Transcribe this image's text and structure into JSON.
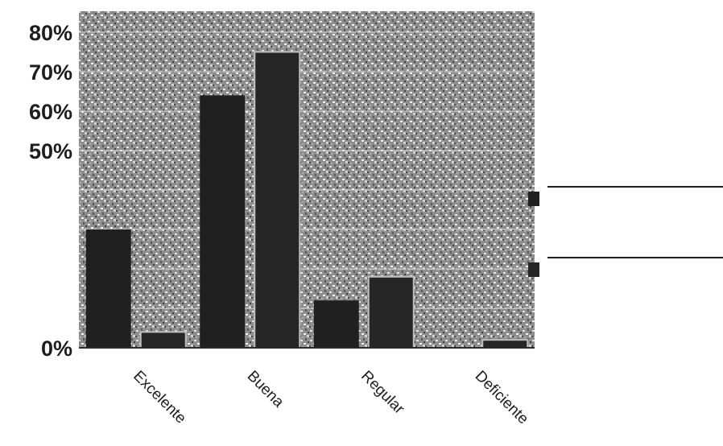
{
  "chart_data": {
    "type": "bar",
    "categories": [
      "Excelente",
      "Buena",
      "Regular",
      "Deficiente"
    ],
    "series": [
      {
        "values": [
          30,
          64,
          12,
          0
        ],
        "color": "#202020"
      },
      {
        "values": [
          4,
          75,
          18,
          2
        ],
        "color": "#262626"
      }
    ],
    "y_ticks": [
      {
        "value": 0,
        "label": "0%"
      },
      {
        "value": 50,
        "label": "50%"
      },
      {
        "value": 60,
        "label": "60%"
      },
      {
        "value": 70,
        "label": "70%"
      },
      {
        "value": 80,
        "label": "80%"
      }
    ],
    "ylim": [
      0,
      80
    ],
    "grid": true,
    "legend": "right",
    "plot_background": "#9a9a9a"
  }
}
